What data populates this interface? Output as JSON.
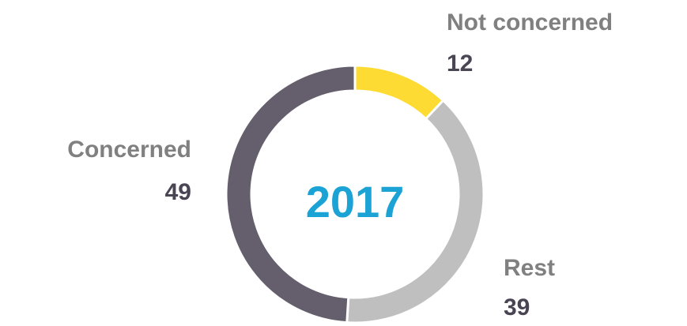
{
  "chart_data": {
    "type": "donut",
    "center_label": "2017",
    "categories": [
      "Not concerned",
      "Rest",
      "Concerned"
    ],
    "values": [
      12,
      39,
      49
    ],
    "colors": [
      "#fddb33",
      "#bfbfbf",
      "#655e6c"
    ]
  }
}
